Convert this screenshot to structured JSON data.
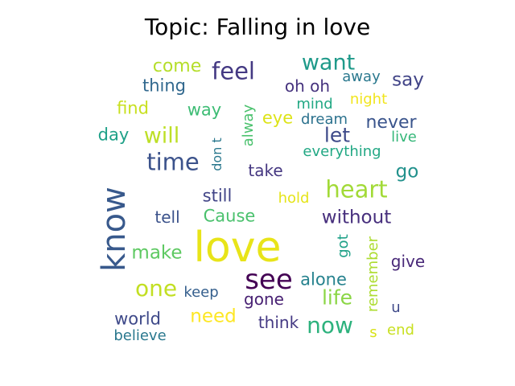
{
  "title": "Topic: Falling in love",
  "words": [
    {
      "text": "love",
      "color": "#e8e419"
    },
    {
      "text": "know",
      "color": "#38598c"
    },
    {
      "text": "see",
      "color": "#440154"
    },
    {
      "text": "heart",
      "color": "#a2da37"
    },
    {
      "text": "time",
      "color": "#3b528b"
    },
    {
      "text": "feel",
      "color": "#443983"
    },
    {
      "text": "want",
      "color": "#1f9a8a"
    },
    {
      "text": "one",
      "color": "#c2df23"
    },
    {
      "text": "now",
      "color": "#2db27d"
    },
    {
      "text": "will",
      "color": "#bddf26"
    },
    {
      "text": "life",
      "color": "#8bd646"
    },
    {
      "text": "let",
      "color": "#3e4a89"
    },
    {
      "text": "without",
      "color": "#472f7d"
    },
    {
      "text": "make",
      "color": "#5ec962"
    },
    {
      "text": "go",
      "color": "#21918c"
    },
    {
      "text": "say",
      "color": "#414487"
    },
    {
      "text": "never",
      "color": "#3a548c"
    },
    {
      "text": "come",
      "color": "#b5de2b"
    },
    {
      "text": "alone",
      "color": "#26828e"
    },
    {
      "text": "need",
      "color": "#fde725"
    },
    {
      "text": "world",
      "color": "#3e4989"
    },
    {
      "text": "Cause",
      "color": "#4ac16d"
    },
    {
      "text": "still",
      "color": "#414487"
    },
    {
      "text": "tell",
      "color": "#3b528b"
    },
    {
      "text": "take",
      "color": "#453781"
    },
    {
      "text": "gone",
      "color": "#482173"
    },
    {
      "text": "think",
      "color": "#443983"
    },
    {
      "text": "give",
      "color": "#482878"
    },
    {
      "text": "oh oh",
      "color": "#46337e"
    },
    {
      "text": "thing",
      "color": "#31688e"
    },
    {
      "text": "find",
      "color": "#c8e020"
    },
    {
      "text": "way",
      "color": "#3dbc74"
    },
    {
      "text": "day",
      "color": "#1fa188"
    },
    {
      "text": "eye",
      "color": "#dde318"
    },
    {
      "text": "dream",
      "color": "#2c728e"
    },
    {
      "text": "mind",
      "color": "#22a884"
    },
    {
      "text": "night",
      "color": "#f1e51d"
    },
    {
      "text": "away",
      "color": "#2a788e"
    },
    {
      "text": "live",
      "color": "#35b779"
    },
    {
      "text": "everything",
      "color": "#22a884"
    },
    {
      "text": "hold",
      "color": "#e5e419"
    },
    {
      "text": "keep",
      "color": "#355f8d"
    },
    {
      "text": "believe",
      "color": "#2a788e"
    },
    {
      "text": "end",
      "color": "#c8e020"
    },
    {
      "text": "u",
      "color": "#3e4989"
    },
    {
      "text": "s",
      "color": "#d8e219"
    },
    {
      "text": "got",
      "color": "#1fa188"
    },
    {
      "text": "remember",
      "color": "#addc30"
    },
    {
      "text": "alway",
      "color": "#4ac16d"
    },
    {
      "text": "don t",
      "color": "#2a788e"
    }
  ]
}
